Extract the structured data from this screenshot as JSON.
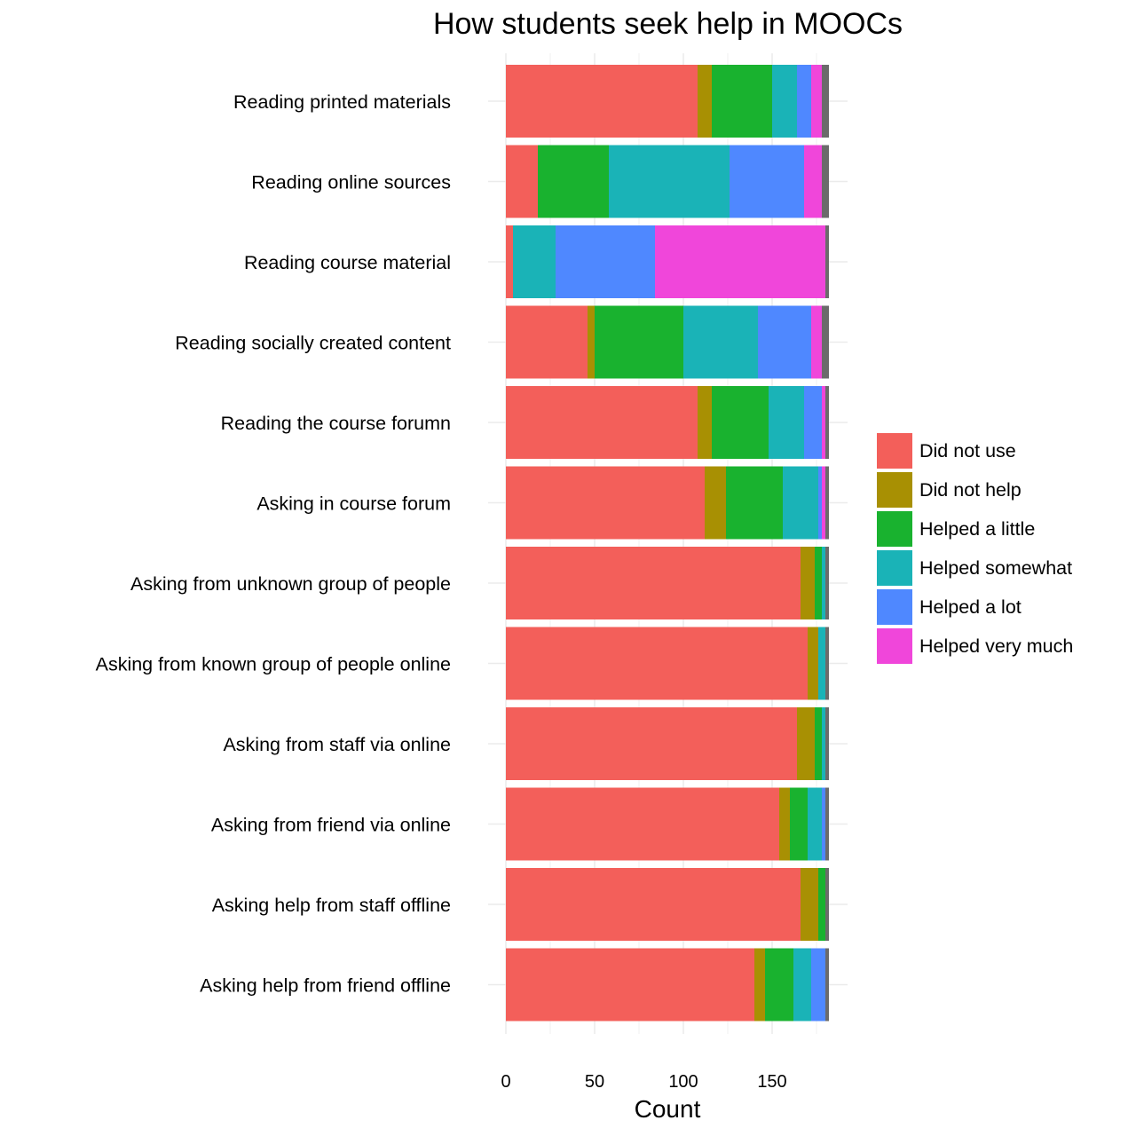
{
  "chart_data": {
    "type": "bar",
    "orientation": "horizontal",
    "stacked": true,
    "title": "How students seek help in MOOCs",
    "xlabel": "Count",
    "ylabel": "",
    "xlim": [
      0,
      182
    ],
    "xticks": [
      0,
      50,
      100,
      150
    ],
    "xtick_labels": [
      "0",
      "50",
      "100",
      "150"
    ],
    "grid": true,
    "legend_position": "right",
    "categories": [
      "Reading printed materials",
      "Reading online sources",
      "Reading course material",
      "Reading socially created content",
      "Reading the course forumn",
      "Asking in course forum",
      "Asking from unknown group of people",
      "Asking from known group of people online",
      "Asking from staff via online",
      "Asking from friend via online",
      "Asking help from staff offline",
      "Asking help from friend offline"
    ],
    "series": [
      {
        "name": "Did not use",
        "color": "#F35F5A",
        "values": [
          108,
          18,
          4,
          46,
          108,
          112,
          166,
          170,
          164,
          154,
          166,
          140
        ]
      },
      {
        "name": "Did not help",
        "color": "#A89003",
        "values": [
          8,
          0,
          0,
          4,
          8,
          12,
          8,
          6,
          10,
          6,
          10,
          6
        ]
      },
      {
        "name": "Helped a little",
        "color": "#19B22F",
        "values": [
          34,
          40,
          0,
          50,
          32,
          32,
          4,
          0,
          4,
          10,
          4,
          16
        ]
      },
      {
        "name": "Helped somewhat",
        "color": "#1AB3B7",
        "values": [
          14,
          68,
          24,
          42,
          20,
          20,
          2,
          4,
          2,
          8,
          0,
          10
        ]
      },
      {
        "name": "Helped a lot",
        "color": "#4F88FF",
        "values": [
          8,
          42,
          56,
          30,
          10,
          2,
          0,
          0,
          0,
          2,
          0,
          8
        ]
      },
      {
        "name": "Helped very much",
        "color": "#F046DA",
        "values": [
          6,
          10,
          96,
          6,
          2,
          2,
          0,
          0,
          0,
          0,
          0,
          0
        ]
      },
      {
        "name": "",
        "color": "#6B6B6B",
        "values": [
          4,
          4,
          2,
          4,
          2,
          2,
          2,
          2,
          2,
          2,
          2,
          2
        ]
      }
    ]
  }
}
